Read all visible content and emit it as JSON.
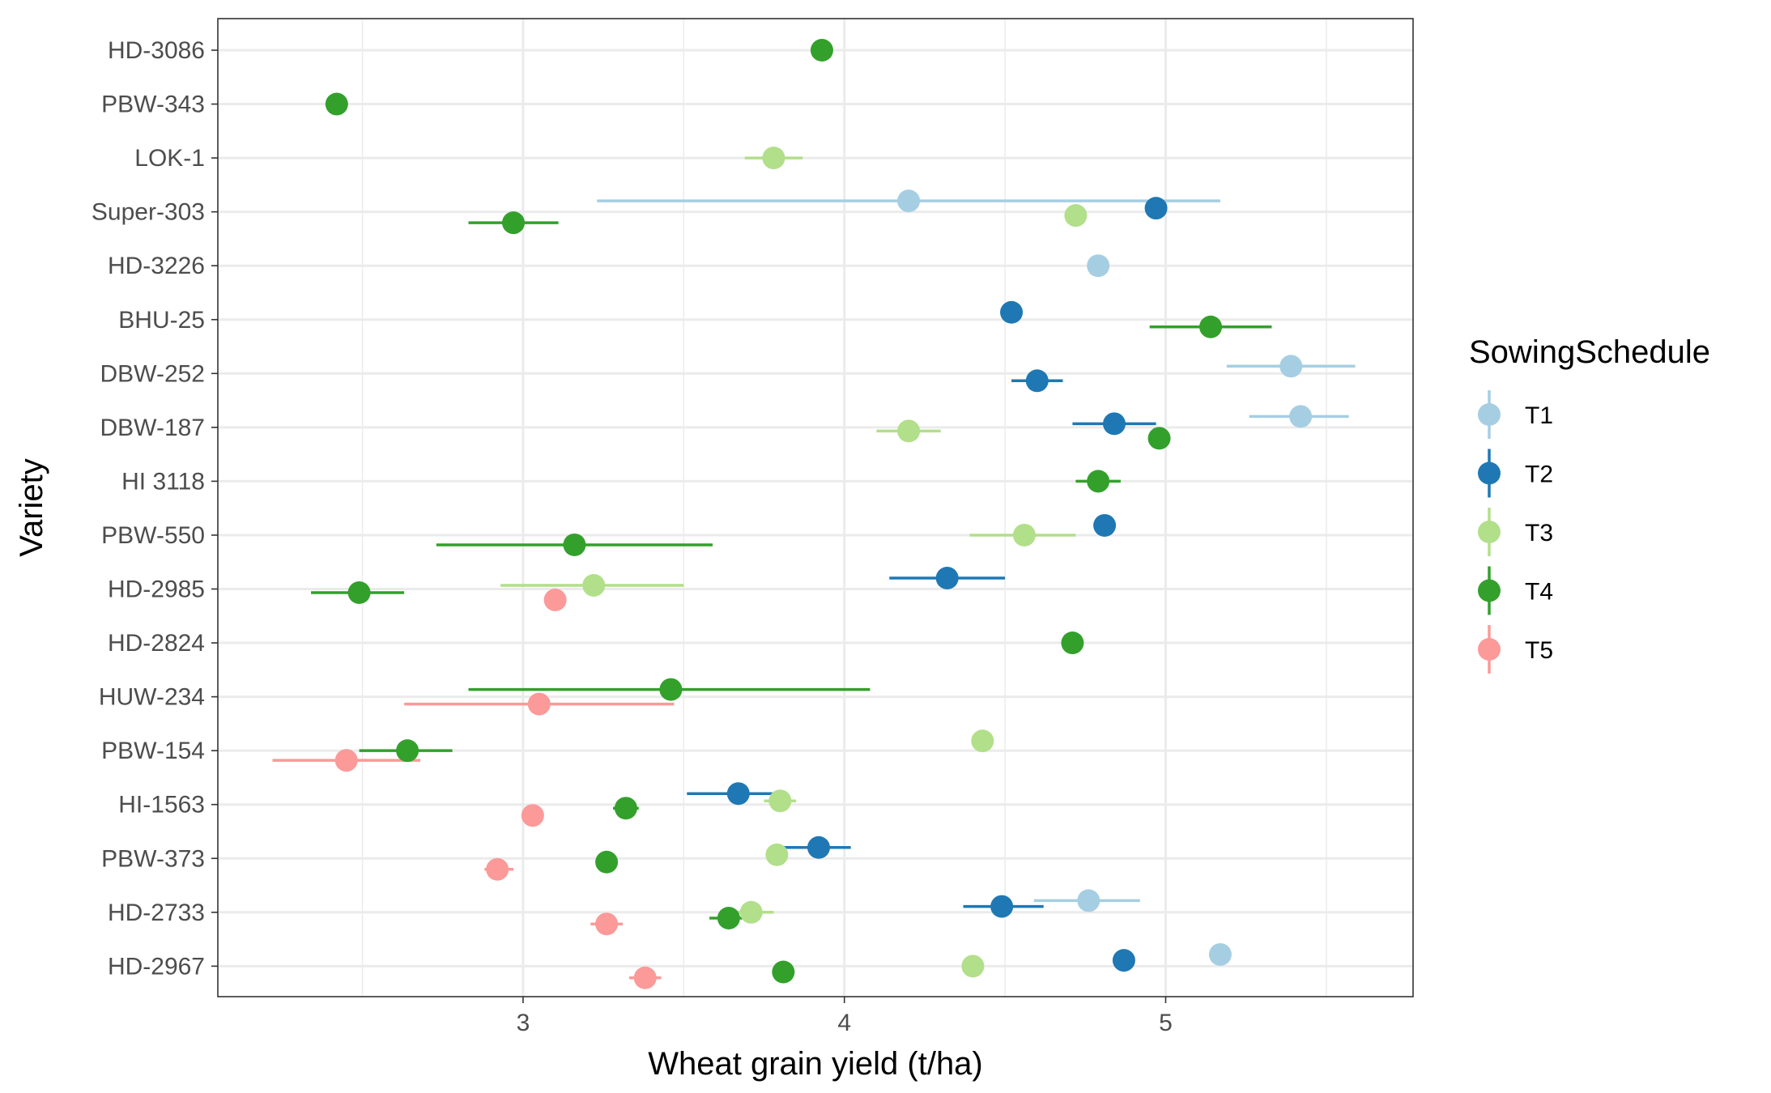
{
  "chart_data": {
    "type": "scatter",
    "title": "",
    "xlabel": "Wheat grain yield (t/ha)",
    "ylabel": "Variety",
    "xlim": [
      2.05,
      5.77
    ],
    "x_ticks": [
      3,
      4,
      5
    ],
    "x_tick_labels": [
      "3",
      "4",
      "5"
    ],
    "grid": true,
    "legend": {
      "title": "SowingSchedule",
      "position": "right"
    },
    "categories": [
      "HD-3086",
      "PBW-343",
      "LOK-1",
      "Super-303",
      "HD-3226",
      "BHU-25",
      "DBW-252",
      "DBW-187",
      "HI 3118",
      "PBW-550",
      "HD-2985",
      "HD-2824",
      "HUW-234",
      "PBW-154",
      "HI-1563",
      "PBW-373",
      "HD-2733",
      "HD-2967"
    ],
    "series": [
      {
        "name": "T1",
        "color": "#a6cee3",
        "points": [
          {
            "cat": "Super-303",
            "x": 4.2,
            "lo": 3.23,
            "hi": 5.17
          },
          {
            "cat": "HD-3226",
            "x": 4.79
          },
          {
            "cat": "DBW-252",
            "x": 5.39,
            "lo": 5.19,
            "hi": 5.59
          },
          {
            "cat": "DBW-187",
            "x": 5.42,
            "lo": 5.26,
            "hi": 5.57
          },
          {
            "cat": "HD-2733",
            "x": 4.76,
            "lo": 4.59,
            "hi": 4.92
          },
          {
            "cat": "HD-2967",
            "x": 5.17
          }
        ]
      },
      {
        "name": "T2",
        "color": "#1f78b4",
        "points": [
          {
            "cat": "Super-303",
            "x": 4.97
          },
          {
            "cat": "BHU-25",
            "x": 4.52
          },
          {
            "cat": "DBW-252",
            "x": 4.6,
            "lo": 4.52,
            "hi": 4.68
          },
          {
            "cat": "DBW-187",
            "x": 4.84,
            "lo": 4.71,
            "hi": 4.97
          },
          {
            "cat": "PBW-550",
            "x": 4.81
          },
          {
            "cat": "HD-2985",
            "x": 4.32,
            "lo": 4.14,
            "hi": 4.5
          },
          {
            "cat": "HI-1563",
            "x": 3.67,
            "lo": 3.51,
            "hi": 3.82
          },
          {
            "cat": "PBW-373",
            "x": 3.92,
            "lo": 3.81,
            "hi": 4.02
          },
          {
            "cat": "HD-2733",
            "x": 4.49,
            "lo": 4.37,
            "hi": 4.62
          },
          {
            "cat": "HD-2967",
            "x": 4.87
          }
        ]
      },
      {
        "name": "T3",
        "color": "#b2df8a",
        "points": [
          {
            "cat": "LOK-1",
            "x": 3.78,
            "lo": 3.69,
            "hi": 3.87
          },
          {
            "cat": "Super-303",
            "x": 4.72
          },
          {
            "cat": "DBW-187",
            "x": 4.2,
            "lo": 4.1,
            "hi": 4.3
          },
          {
            "cat": "PBW-550",
            "x": 4.56,
            "lo": 4.39,
            "hi": 4.72
          },
          {
            "cat": "HD-2985",
            "x": 3.22,
            "lo": 2.93,
            "hi": 3.5
          },
          {
            "cat": "PBW-154",
            "x": 4.43
          },
          {
            "cat": "HI-1563",
            "x": 3.8,
            "lo": 3.75,
            "hi": 3.85
          },
          {
            "cat": "PBW-373",
            "x": 3.79,
            "lo": 3.76,
            "hi": 3.82
          },
          {
            "cat": "HD-2733",
            "x": 3.71,
            "lo": 3.65,
            "hi": 3.78
          },
          {
            "cat": "HD-2967",
            "x": 4.4
          }
        ]
      },
      {
        "name": "T4",
        "color": "#33a02c",
        "points": [
          {
            "cat": "HD-3086",
            "x": 3.93
          },
          {
            "cat": "PBW-343",
            "x": 2.42
          },
          {
            "cat": "Super-303",
            "x": 2.97,
            "lo": 2.83,
            "hi": 3.11
          },
          {
            "cat": "BHU-25",
            "x": 5.14,
            "lo": 4.95,
            "hi": 5.33
          },
          {
            "cat": "DBW-187",
            "x": 4.98
          },
          {
            "cat": "HI 3118",
            "x": 4.79,
            "lo": 4.72,
            "hi": 4.86
          },
          {
            "cat": "PBW-550",
            "x": 3.16,
            "lo": 2.73,
            "hi": 3.59
          },
          {
            "cat": "HD-2985",
            "x": 2.49,
            "lo": 2.34,
            "hi": 2.63
          },
          {
            "cat": "HD-2824",
            "x": 4.71
          },
          {
            "cat": "HUW-234",
            "x": 3.46,
            "lo": 2.83,
            "hi": 4.08
          },
          {
            "cat": "PBW-154",
            "x": 2.64,
            "lo": 2.49,
            "hi": 2.78
          },
          {
            "cat": "HI-1563",
            "x": 3.32,
            "lo": 3.28,
            "hi": 3.36
          },
          {
            "cat": "PBW-373",
            "x": 3.26,
            "lo": 3.23,
            "hi": 3.29
          },
          {
            "cat": "HD-2733",
            "x": 3.64,
            "lo": 3.58,
            "hi": 3.7
          },
          {
            "cat": "HD-2967",
            "x": 3.81,
            "lo": 3.78,
            "hi": 3.84
          }
        ]
      },
      {
        "name": "T5",
        "color": "#fb9a99",
        "points": [
          {
            "cat": "HD-2985",
            "x": 3.1
          },
          {
            "cat": "HUW-234",
            "x": 3.05,
            "lo": 2.63,
            "hi": 3.47
          },
          {
            "cat": "PBW-154",
            "x": 2.45,
            "lo": 2.22,
            "hi": 2.68
          },
          {
            "cat": "HI-1563",
            "x": 3.03
          },
          {
            "cat": "PBW-373",
            "x": 2.92,
            "lo": 2.88,
            "hi": 2.97
          },
          {
            "cat": "HD-2733",
            "x": 3.26,
            "lo": 3.21,
            "hi": 3.31
          },
          {
            "cat": "HD-2967",
            "x": 3.38,
            "lo": 3.33,
            "hi": 3.43
          }
        ]
      }
    ]
  }
}
